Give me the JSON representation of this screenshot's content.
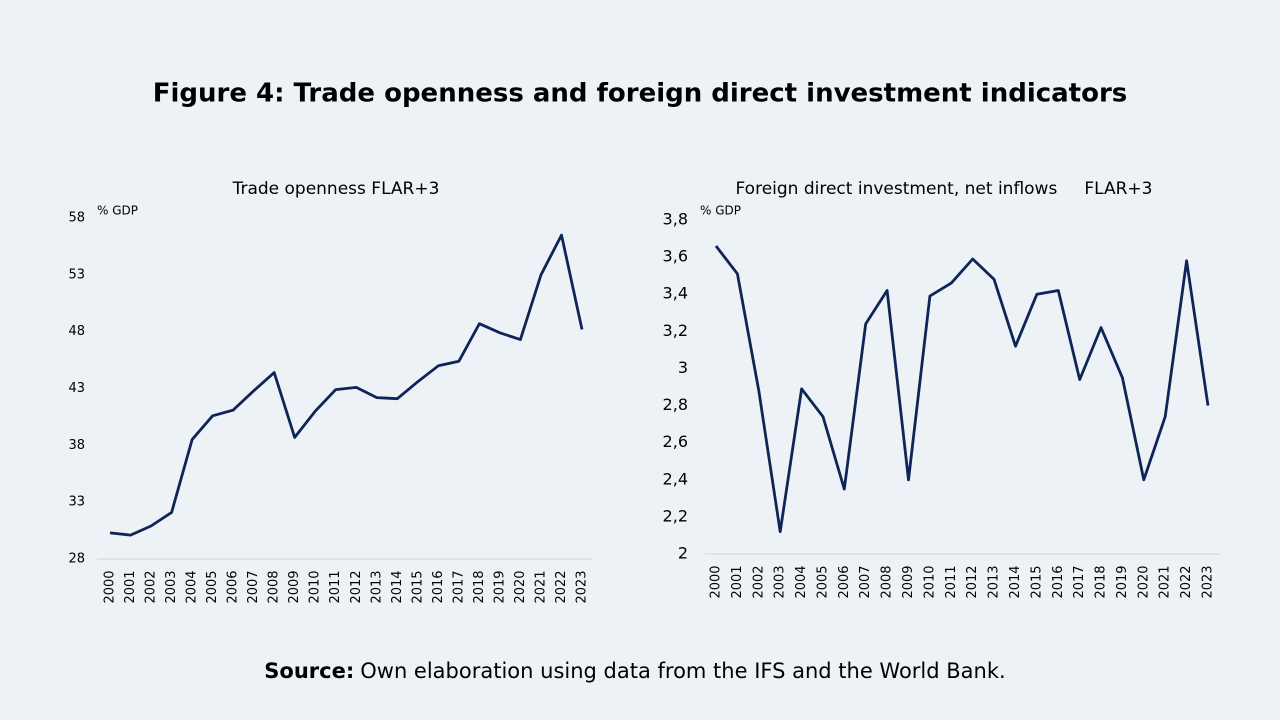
{
  "title": "Figure 4: Trade openness and foreign direct investment indicators",
  "source": {
    "label": "Source:",
    "text": "Own elaboration using data from the IFS and the World Bank."
  },
  "chart_data": [
    {
      "type": "line",
      "title": "Trade openness FLAR+3",
      "y_unit": "% GDP",
      "categories": [
        "2000",
        "2001",
        "2002",
        "2003",
        "2004",
        "2005",
        "2006",
        "2007",
        "2008",
        "2009",
        "2010",
        "2011",
        "2012",
        "2013",
        "2014",
        "2015",
        "2016",
        "2017",
        "2018",
        "2019",
        "2020",
        "2021",
        "2022",
        "2023"
      ],
      "values": [
        30.3,
        30.1,
        30.9,
        32.1,
        38.5,
        40.6,
        41.1,
        42.8,
        44.4,
        38.7,
        41.0,
        42.9,
        43.1,
        42.2,
        42.1,
        43.6,
        45.0,
        45.4,
        48.7,
        47.9,
        47.3,
        53.0,
        56.5,
        48.2
      ],
      "color": "#0f2558",
      "ylim": [
        28,
        58
      ],
      "yticks": [
        28,
        33,
        38,
        43,
        48,
        53,
        58
      ]
    },
    {
      "type": "line",
      "title": "Foreign direct investment, net inflows     FLAR+3",
      "y_unit": "% GDP",
      "categories": [
        "2000",
        "2001",
        "2002",
        "2003",
        "2004",
        "2005",
        "2006",
        "2007",
        "2008",
        "2009",
        "2010",
        "2011",
        "2012",
        "2013",
        "2014",
        "2015",
        "2016",
        "2017",
        "2018",
        "2019",
        "2020",
        "2021",
        "2022",
        "2023"
      ],
      "values": [
        3.66,
        3.51,
        2.88,
        2.12,
        2.89,
        2.74,
        2.35,
        3.24,
        3.42,
        2.4,
        3.39,
        3.46,
        3.59,
        3.48,
        3.12,
        3.4,
        3.42,
        2.94,
        3.22,
        2.95,
        2.4,
        2.74,
        3.58,
        2.8
      ],
      "color": "#0f2558",
      "ylim": [
        2,
        3.8
      ],
      "yticks": [
        2,
        {
          "value": 2.2,
          "label": "2,2"
        },
        {
          "value": 2.4,
          "label": "2,4"
        },
        {
          "value": 2.6,
          "label": "2,6"
        },
        {
          "value": 2.8,
          "label": "2,8"
        },
        3,
        {
          "value": 3.2,
          "label": "3,2"
        },
        {
          "value": 3.4,
          "label": "3,4"
        },
        {
          "value": 3.6,
          "label": "3,6"
        },
        {
          "value": 3.8,
          "label": "3,8"
        }
      ]
    }
  ]
}
